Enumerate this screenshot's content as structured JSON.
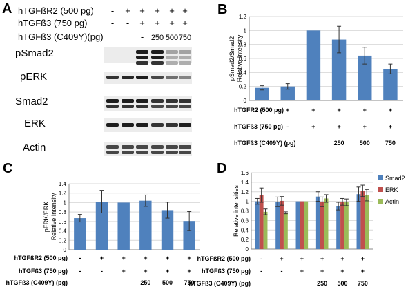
{
  "panels": {
    "A": {
      "letter": "A",
      "row_labels": [
        "hTGFßR2 (500 pg)",
        "hTGFß3 (750 pg)",
        "hTGFß3 (C409Y)(pg)"
      ],
      "row_symbols": [
        [
          "-",
          "+",
          "+",
          "+",
          "+",
          "+"
        ],
        [
          "-",
          "-",
          "+",
          "+",
          "+",
          "+"
        ],
        [
          "",
          "",
          "-",
          "250",
          "500",
          "750"
        ]
      ],
      "blots": [
        "pSmad2",
        "pERK",
        "Smad2",
        "ERK",
        "Actin"
      ]
    },
    "B": {
      "letter": "B"
    },
    "C": {
      "letter": "C"
    },
    "D": {
      "letter": "D"
    }
  },
  "chart_data": [
    {
      "panel": "B",
      "type": "bar",
      "ylabel": "pSmad2/Smad2\nRelative Intensity",
      "ylim": [
        0,
        1.2
      ],
      "yticks": [
        "0",
        "0.2",
        "0.4",
        "0.6",
        "0.8",
        "1",
        "1.2"
      ],
      "series": [
        {
          "values": [
            0.18,
            0.2,
            1.0,
            0.87,
            0.64,
            0.45
          ],
          "errors": [
            0.03,
            0.04,
            0.0,
            0.19,
            0.12,
            0.07
          ],
          "color": "#4f81bd"
        }
      ],
      "condition_rows": [
        {
          "label": "hTGFR2 (500 pg)",
          "values": [
            "-",
            "+",
            "+",
            "+",
            "+",
            "+"
          ]
        },
        {
          "label": "hTGFß3 (750 pg)",
          "values": [
            "-",
            "-",
            "+",
            "+",
            "+",
            "+"
          ]
        },
        {
          "label": "hTGFß3 (C409Y) (pg)",
          "values": [
            "",
            "",
            "",
            "250",
            "500",
            "750"
          ]
        }
      ]
    },
    {
      "panel": "C",
      "type": "bar",
      "ylabel": "pERK/ERK\nRelative Intensity",
      "ylim": [
        0,
        1.4
      ],
      "yticks": [
        "0",
        "0.2",
        "0.4",
        "0.6",
        "0.8",
        "1",
        "1.2",
        "1.4"
      ],
      "series": [
        {
          "values": [
            0.67,
            1.02,
            1.0,
            1.04,
            0.84,
            0.61
          ],
          "errors": [
            0.08,
            0.24,
            0.0,
            0.12,
            0.17,
            0.2
          ],
          "color": "#4f81bd"
        }
      ],
      "condition_rows": [
        {
          "label": "hTGFßR2 (500 pg)",
          "values": [
            "-",
            "+",
            "+",
            "+",
            "+",
            "+"
          ]
        },
        {
          "label": "hTGFß3 (750 pg)",
          "values": [
            "-",
            "-",
            "+",
            "+",
            "+",
            "+"
          ]
        },
        {
          "label": "hTGFß3 (C409Y) (pg)",
          "values": [
            "",
            "",
            "",
            "250",
            "500",
            "750"
          ]
        }
      ]
    },
    {
      "panel": "D",
      "type": "bar",
      "ylabel": "Relative intensities",
      "ylim": [
        0,
        1.6
      ],
      "yticks": [
        "0",
        "0.2",
        "0.4",
        "0.6",
        "0.8",
        "1",
        "1.2",
        "1.4",
        "1.6"
      ],
      "legend_position": "right",
      "series": [
        {
          "name": "Smad2",
          "color": "#4f81bd",
          "values": [
            1.0,
            0.99,
            1.0,
            1.1,
            0.9,
            1.15
          ],
          "errors": [
            0.06,
            0.1,
            0.0,
            0.1,
            0.08,
            0.15
          ]
        },
        {
          "name": "ERK",
          "color": "#c0504d",
          "values": [
            1.13,
            1.01,
            1.0,
            0.99,
            0.99,
            1.22
          ],
          "errors": [
            0.15,
            0.09,
            0.0,
            0.1,
            0.07,
            0.12
          ]
        },
        {
          "name": "Actin",
          "color": "#9bbb59",
          "values": [
            0.78,
            0.76,
            1.0,
            1.06,
            0.98,
            1.13
          ],
          "errors": [
            0.06,
            0.02,
            0.0,
            0.08,
            0.07,
            0.12
          ]
        }
      ],
      "condition_rows": [
        {
          "label": "hTGFßR2 (500 pg)",
          "values": [
            "-",
            "+",
            "+",
            "+",
            "+",
            "+"
          ]
        },
        {
          "label": "hTGFß3 (750 pg)",
          "values": [
            "-",
            "-",
            "+",
            "+",
            "+",
            "+"
          ]
        },
        {
          "label": "hTGFß3 (C409Y) (pg)",
          "values": [
            "",
            "",
            "",
            "250",
            "500",
            "750"
          ]
        }
      ]
    }
  ]
}
